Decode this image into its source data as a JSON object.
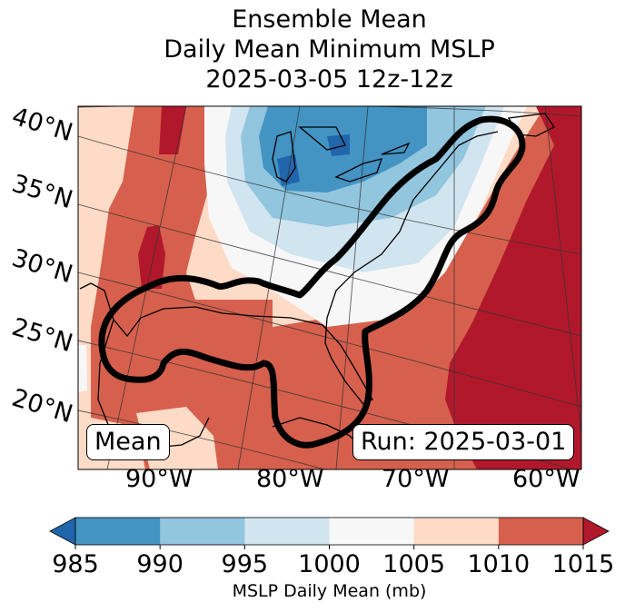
{
  "title": {
    "line1": "Ensemble Mean",
    "line2": "Daily Mean Minimum MSLP",
    "line3": "2025-03-05 12z-12z"
  },
  "map": {
    "projection": "conic",
    "lat_labels": [
      "40°N",
      "35°N",
      "30°N",
      "25°N",
      "20°N"
    ],
    "lon_labels": [
      "90°W",
      "80°W",
      "70°W",
      "60°W"
    ],
    "mean_label": "Mean",
    "run_label": "Run: 2025-03-01",
    "features": {
      "low_center": "Great Lakes (~990 mb and below)",
      "high_region": "Western Atlantic (>1015 mb)",
      "outlined_region": "Gulf Coast and US East Coast contour"
    }
  },
  "colorbar": {
    "label": "MSLP Daily Mean (mb)",
    "ticks": [
      "985",
      "990",
      "995",
      "1000",
      "1005",
      "1010",
      "1015"
    ],
    "bins": [
      {
        "range": "<985",
        "color": "#2166ac"
      },
      {
        "range": "985-990",
        "color": "#4393c3"
      },
      {
        "range": "990-995",
        "color": "#92c5de"
      },
      {
        "range": "995-1000",
        "color": "#d1e5f0"
      },
      {
        "range": "1000-1005",
        "color": "#f7f7f7"
      },
      {
        "range": "1005-1010",
        "color": "#fddbc7"
      },
      {
        "range": "1010-1015",
        "color": "#d6604d"
      },
      {
        "range": ">1015",
        "color": "#b2182b"
      }
    ],
    "extend": "both"
  },
  "chart_data": {
    "type": "heatmap",
    "title": "Ensemble Mean Daily Mean Minimum MSLP 2025-03-05 12z-12z",
    "xlabel": "",
    "ylabel": "",
    "colorbar_label": "MSLP Daily Mean (mb)",
    "levels": [
      985,
      990,
      995,
      1000,
      1005,
      1010,
      1015
    ],
    "lon_ticks": [
      -90,
      -80,
      -70,
      -60
    ],
    "lat_ticks": [
      20,
      25,
      30,
      35,
      40
    ],
    "annotations": [
      "Mean",
      "Run: 2025-03-01"
    ]
  }
}
